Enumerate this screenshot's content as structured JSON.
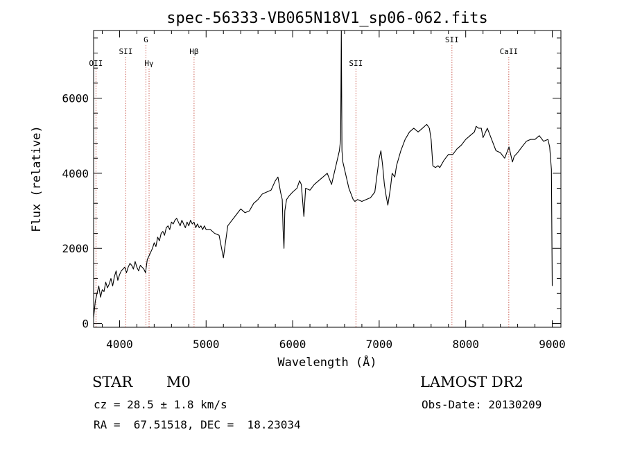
{
  "chart_data": {
    "type": "line",
    "title": "spec-56333-VB065N18V1_sp06-062.fits",
    "xlabel": "Wavelength (Å)",
    "ylabel": "Flux (relative)",
    "xlim": [
      3700,
      9100
    ],
    "ylim": [
      -100,
      7800
    ],
    "x_ticks": [
      4000,
      5000,
      6000,
      7000,
      8000,
      9000
    ],
    "y_ticks": [
      0,
      2000,
      4000,
      6000
    ],
    "grid": false,
    "legend": "none",
    "series": [
      {
        "x": [
          3700,
          3720,
          3740,
          3760,
          3780,
          3800,
          3820,
          3840,
          3860,
          3880,
          3900,
          3920,
          3940,
          3960,
          3980,
          4000,
          4020,
          4040,
          4060,
          4080,
          4100,
          4120,
          4140,
          4160,
          4180,
          4200,
          4220,
          4240,
          4260,
          4280,
          4300,
          4320,
          4340,
          4360,
          4380,
          4400,
          4420,
          4440,
          4460,
          4480,
          4500,
          4520,
          4540,
          4560,
          4580,
          4600,
          4620,
          4640,
          4660,
          4680,
          4700,
          4720,
          4740,
          4760,
          4780,
          4800,
          4820,
          4840,
          4860,
          4880,
          4900,
          4920,
          4940,
          4960,
          4980,
          5000,
          5050,
          5100,
          5150,
          5200,
          5250,
          5300,
          5350,
          5400,
          5450,
          5500,
          5550,
          5600,
          5650,
          5700,
          5750,
          5800,
          5830,
          5860,
          5880,
          5890,
          5900,
          5910,
          5930,
          5960,
          6000,
          6050,
          6080,
          6100,
          6130,
          6150,
          6200,
          6250,
          6300,
          6350,
          6400,
          6450,
          6500,
          6520,
          6540,
          6555,
          6563,
          6570,
          6580,
          6600,
          6650,
          6700,
          6720,
          6750,
          6800,
          6850,
          6900,
          6950,
          7000,
          7020,
          7040,
          7060,
          7080,
          7100,
          7130,
          7150,
          7180,
          7200,
          7250,
          7300,
          7350,
          7400,
          7450,
          7500,
          7550,
          7580,
          7600,
          7620,
          7650,
          7680,
          7700,
          7750,
          7800,
          7850,
          7900,
          7950,
          8000,
          8050,
          8100,
          8120,
          8150,
          8180,
          8200,
          8220,
          8250,
          8300,
          8350,
          8400,
          8450,
          8500,
          8540,
          8560,
          8600,
          8650,
          8700,
          8750,
          8800,
          8850,
          8900,
          8950,
          8970,
          8990,
          9000
        ],
        "y": [
          150,
          600,
          800,
          1000,
          700,
          900,
          850,
          1100,
          950,
          1050,
          1200,
          1000,
          1250,
          1400,
          1150,
          1300,
          1400,
          1450,
          1500,
          1350,
          1500,
          1600,
          1550,
          1450,
          1650,
          1500,
          1400,
          1550,
          1500,
          1450,
          1350,
          1700,
          1800,
          1900,
          2000,
          2150,
          2050,
          2300,
          2200,
          2400,
          2450,
          2350,
          2550,
          2600,
          2500,
          2700,
          2650,
          2750,
          2800,
          2700,
          2600,
          2750,
          2650,
          2550,
          2700,
          2600,
          2750,
          2650,
          2700,
          2550,
          2650,
          2550,
          2600,
          2500,
          2600,
          2500,
          2500,
          2400,
          2350,
          1750,
          2600,
          2750,
          2900,
          3050,
          2950,
          3000,
          3200,
          3300,
          3450,
          3500,
          3550,
          3800,
          3900,
          3500,
          3300,
          2500,
          2000,
          3000,
          3300,
          3400,
          3500,
          3600,
          3800,
          3700,
          2850,
          3600,
          3550,
          3700,
          3800,
          3900,
          4000,
          3700,
          4200,
          4400,
          4600,
          4900,
          7800,
          4600,
          4300,
          4100,
          3600,
          3300,
          3250,
          3300,
          3250,
          3300,
          3350,
          3500,
          4400,
          4600,
          4200,
          3700,
          3400,
          3150,
          3600,
          4000,
          3900,
          4200,
          4600,
          4900,
          5100,
          5200,
          5100,
          5200,
          5300,
          5200,
          4900,
          4200,
          4150,
          4200,
          4150,
          4350,
          4500,
          4500,
          4650,
          4750,
          4900,
          5000,
          5100,
          5250,
          5200,
          5200,
          4950,
          5050,
          5200,
          4900,
          4600,
          4550,
          4400,
          4700,
          4300,
          4450,
          4550,
          4700,
          4850,
          4900,
          4900,
          5000,
          4850,
          4900,
          4700,
          4100,
          1000
        ]
      }
    ],
    "emission_lines": [
      {
        "name": "OII",
        "wavelength": 3727,
        "tier": 2
      },
      {
        "name": "SII",
        "wavelength": 4072,
        "tier": 1
      },
      {
        "name": "G",
        "wavelength": 4304,
        "tier": 0
      },
      {
        "name": "Hγ",
        "wavelength": 4341,
        "tier": 2
      },
      {
        "name": "Hβ",
        "wavelength": 4861,
        "tier": 1
      },
      {
        "name": "SII",
        "wavelength": 6731,
        "tier": 2
      },
      {
        "name": "SII",
        "wavelength": 7841,
        "tier": 0
      },
      {
        "name": "CaII",
        "wavelength": 8498,
        "tier": 1
      }
    ]
  },
  "footer": {
    "classification": "STAR",
    "subclass": "M0",
    "velocity": "cz = 28.5 ± 1.8 km/s",
    "coordinates": "RA =  67.51518, DEC =  18.23034",
    "survey": "LAMOST DR2",
    "obs_date": "Obs-Date: 20130209"
  }
}
